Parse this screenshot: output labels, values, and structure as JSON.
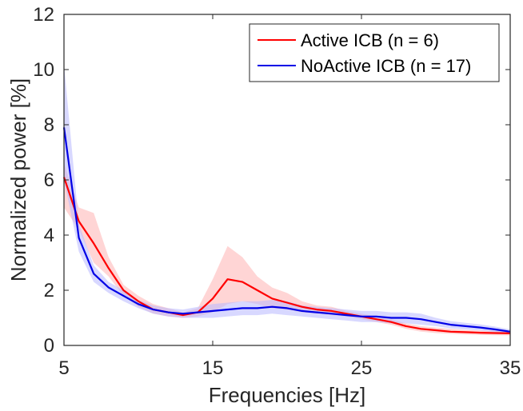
{
  "chart_data": {
    "type": "line",
    "title": "",
    "xlabel": "Frequencies [Hz]",
    "ylabel": "Normalized power [%]",
    "xlim": [
      5,
      35
    ],
    "ylim": [
      0,
      12
    ],
    "xticks": [
      5,
      15,
      25,
      35
    ],
    "yticks": [
      0,
      2,
      4,
      6,
      8,
      10,
      12
    ],
    "grid": false,
    "legend_position": "top-right",
    "series": [
      {
        "name": "Active ICB (n = 6)",
        "color": "#ff0000",
        "band_color": "#ffb3b3",
        "x": [
          5,
          6,
          7,
          8,
          9,
          10,
          11,
          12,
          13,
          14,
          15,
          16,
          17,
          18,
          19,
          20,
          21,
          22,
          23,
          24,
          25,
          26,
          27,
          28,
          29,
          30,
          31,
          32,
          33,
          34,
          35
        ],
        "y": [
          6.1,
          4.5,
          3.7,
          2.8,
          2.0,
          1.6,
          1.3,
          1.2,
          1.1,
          1.2,
          1.7,
          2.4,
          2.3,
          2.0,
          1.7,
          1.55,
          1.4,
          1.3,
          1.25,
          1.15,
          1.05,
          0.95,
          0.85,
          0.7,
          0.6,
          0.55,
          0.5,
          0.48,
          0.46,
          0.45,
          0.44
        ],
        "lower": [
          5.0,
          4.2,
          3.0,
          2.5,
          1.8,
          1.4,
          1.15,
          1.05,
          1.0,
          1.05,
          1.2,
          1.5,
          1.6,
          1.5,
          1.35,
          1.3,
          1.2,
          1.15,
          1.1,
          1.05,
          0.95,
          0.85,
          0.75,
          0.6,
          0.5,
          0.45,
          0.42,
          0.4,
          0.38,
          0.37,
          0.36
        ],
        "upper": [
          6.6,
          5.0,
          4.8,
          3.2,
          2.2,
          1.8,
          1.5,
          1.35,
          1.2,
          1.35,
          2.4,
          3.6,
          3.2,
          2.5,
          2.1,
          1.9,
          1.6,
          1.45,
          1.4,
          1.25,
          1.15,
          1.05,
          0.95,
          0.8,
          0.7,
          0.65,
          0.6,
          0.56,
          0.54,
          0.53,
          0.52
        ]
      },
      {
        "name": "NoActive ICB (n = 17)",
        "color": "#0000e6",
        "band_color": "#b8b8ff",
        "x": [
          5,
          6,
          7,
          8,
          9,
          10,
          11,
          12,
          13,
          14,
          15,
          16,
          17,
          18,
          19,
          20,
          21,
          22,
          23,
          24,
          25,
          26,
          27,
          28,
          29,
          30,
          31,
          32,
          33,
          34,
          35
        ],
        "y": [
          7.9,
          3.9,
          2.6,
          2.1,
          1.8,
          1.5,
          1.3,
          1.2,
          1.15,
          1.2,
          1.25,
          1.3,
          1.35,
          1.35,
          1.4,
          1.35,
          1.25,
          1.2,
          1.15,
          1.1,
          1.05,
          1.05,
          1.0,
          1.0,
          0.95,
          0.85,
          0.75,
          0.7,
          0.65,
          0.58,
          0.5
        ],
        "lower": [
          6.0,
          3.4,
          2.3,
          1.9,
          1.6,
          1.35,
          1.15,
          1.05,
          1.0,
          1.0,
          1.0,
          1.05,
          1.1,
          1.1,
          1.15,
          1.1,
          1.05,
          1.0,
          0.95,
          0.9,
          0.85,
          0.85,
          0.8,
          0.8,
          0.75,
          0.7,
          0.62,
          0.58,
          0.54,
          0.48,
          0.42
        ],
        "upper": [
          10.2,
          4.4,
          2.9,
          2.3,
          2.0,
          1.65,
          1.45,
          1.35,
          1.3,
          1.4,
          1.5,
          1.55,
          1.6,
          1.6,
          1.65,
          1.6,
          1.45,
          1.4,
          1.35,
          1.3,
          1.25,
          1.25,
          1.2,
          1.2,
          1.15,
          1.0,
          0.88,
          0.82,
          0.76,
          0.68,
          0.58
        ]
      }
    ]
  }
}
